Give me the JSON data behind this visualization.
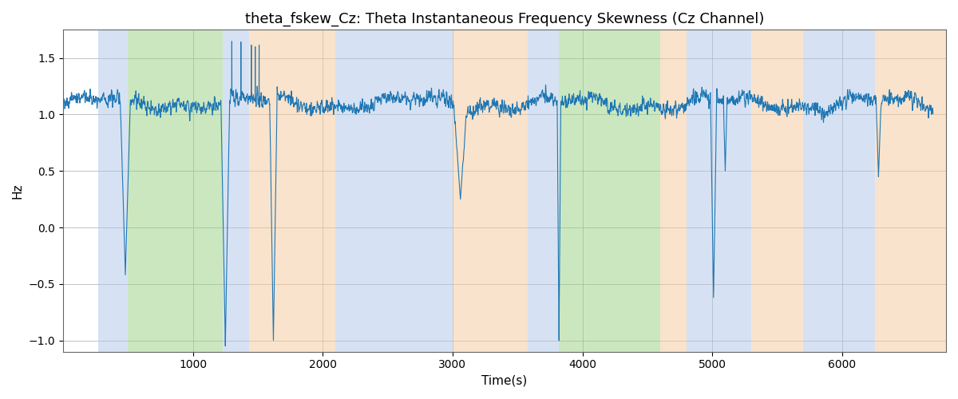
{
  "title": "theta_fskew_Cz: Theta Instantaneous Frequency Skewness (Cz Channel)",
  "xlabel": "Time(s)",
  "ylabel": "Hz",
  "xlim": [
    0,
    6800
  ],
  "ylim": [
    -1.1,
    1.75
  ],
  "line_color": "#1f77b4",
  "line_width": 0.8,
  "background_color": "#ffffff",
  "grid_color": "#aaaaaa",
  "colored_bands": [
    {
      "xmin": 270,
      "xmax": 500,
      "color": "#aec6e8",
      "alpha": 0.5
    },
    {
      "xmin": 500,
      "xmax": 1230,
      "color": "#98d080",
      "alpha": 0.5
    },
    {
      "xmin": 1230,
      "xmax": 1430,
      "color": "#aec6e8",
      "alpha": 0.5
    },
    {
      "xmin": 1430,
      "xmax": 2100,
      "color": "#f5c99a",
      "alpha": 0.5
    },
    {
      "xmin": 2100,
      "xmax": 3000,
      "color": "#aec6e8",
      "alpha": 0.5
    },
    {
      "xmin": 3000,
      "xmax": 3580,
      "color": "#f5c99a",
      "alpha": 0.5
    },
    {
      "xmin": 3580,
      "xmax": 3820,
      "color": "#aec6e8",
      "alpha": 0.5
    },
    {
      "xmin": 3820,
      "xmax": 4600,
      "color": "#98d080",
      "alpha": 0.5
    },
    {
      "xmin": 4600,
      "xmax": 4800,
      "color": "#f5c99a",
      "alpha": 0.5
    },
    {
      "xmin": 4800,
      "xmax": 5300,
      "color": "#aec6e8",
      "alpha": 0.5
    },
    {
      "xmin": 5300,
      "xmax": 5700,
      "color": "#f5c99a",
      "alpha": 0.5
    },
    {
      "xmin": 5700,
      "xmax": 6250,
      "color": "#aec6e8",
      "alpha": 0.5
    },
    {
      "xmin": 6250,
      "xmax": 6800,
      "color": "#f5c99a",
      "alpha": 0.5
    }
  ],
  "yticks": [
    -1.0,
    -0.5,
    0.0,
    0.5,
    1.0,
    1.5
  ],
  "xticks": [
    1000,
    2000,
    3000,
    4000,
    5000,
    6000
  ],
  "figsize": [
    12.0,
    5.0
  ],
  "dpi": 100
}
